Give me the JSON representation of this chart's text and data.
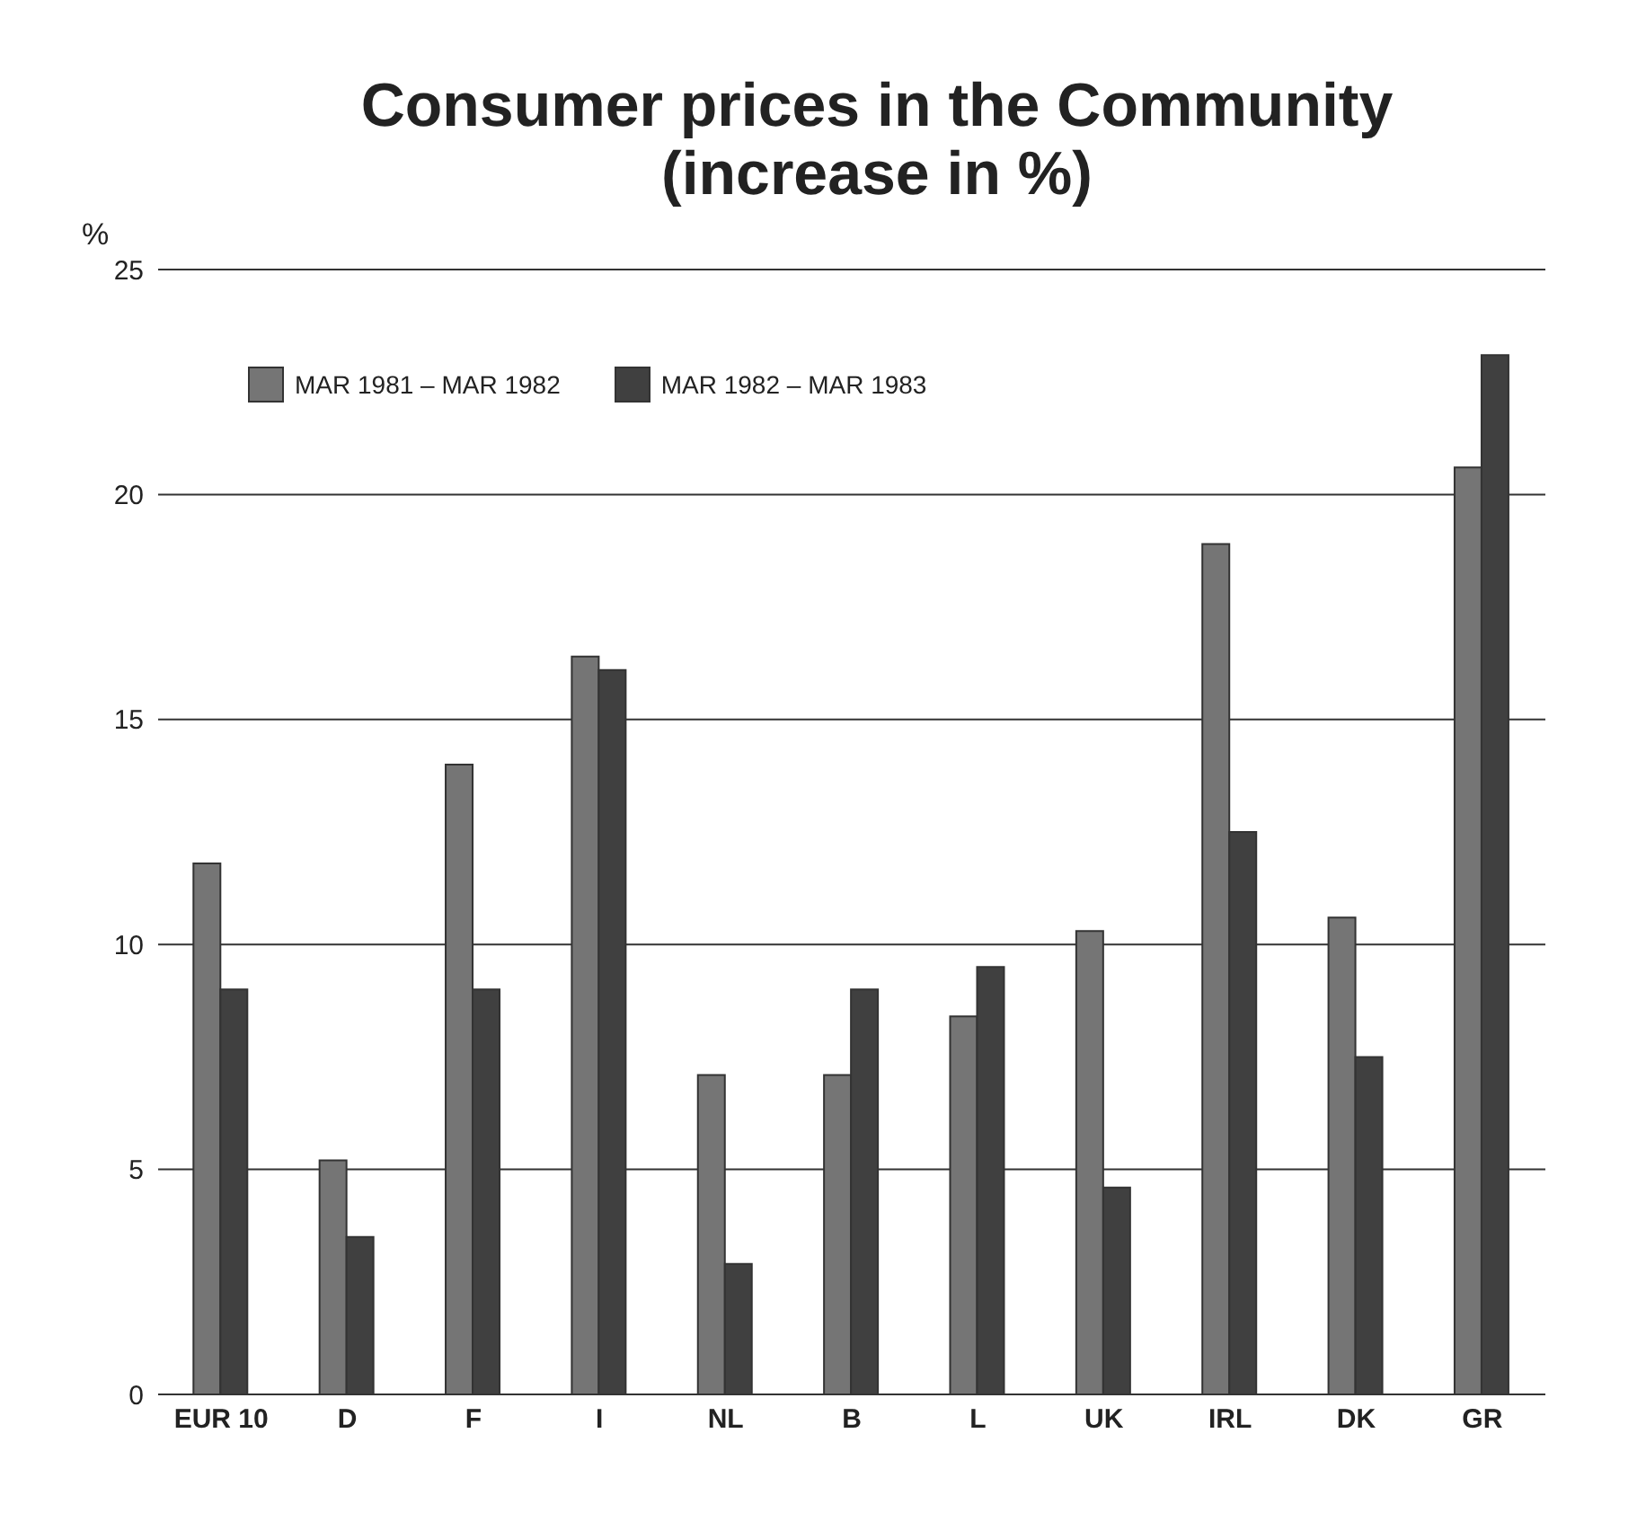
{
  "chart_data": {
    "type": "bar",
    "title": "Consumer prices in the Community\n(increase in %)",
    "ylabel": "%",
    "categories": [
      "EUR 10",
      "D",
      "F",
      "I",
      "NL",
      "B",
      "L",
      "UK",
      "IRL",
      "DK",
      "GR"
    ],
    "series": [
      {
        "name": "MAR 1981 – MAR 1982",
        "color": "#757575",
        "values": [
          11.8,
          5.2,
          14.0,
          16.4,
          7.1,
          7.1,
          8.4,
          10.3,
          18.9,
          10.6,
          20.6
        ]
      },
      {
        "name": "MAR 1982 – MAR 1983",
        "color": "#404040",
        "values": [
          9.0,
          3.5,
          9.0,
          16.1,
          2.9,
          9.0,
          9.5,
          4.6,
          12.5,
          7.5,
          23.1
        ]
      }
    ],
    "ylim": [
      0,
      25
    ],
    "yticks": [
      0,
      5,
      10,
      15,
      20,
      25
    ],
    "grid": "y",
    "legend": "top left"
  }
}
